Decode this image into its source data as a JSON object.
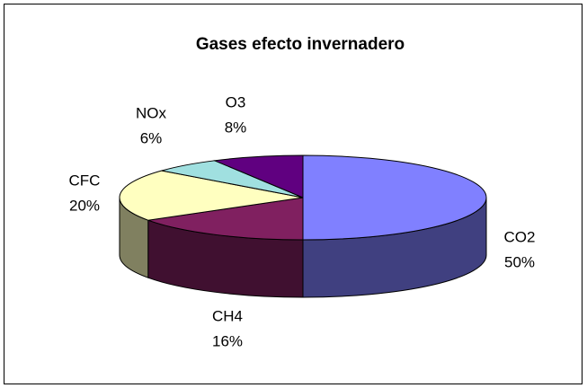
{
  "chart_data": {
    "type": "pie",
    "title": "Gases efecto invernadero",
    "categories": [
      "CO2",
      "CH4",
      "CFC",
      "NOx",
      "O3"
    ],
    "values": [
      50,
      16,
      20,
      6,
      8
    ],
    "value_labels": [
      "50%",
      "16%",
      "20%",
      "6%",
      "8%"
    ],
    "colors": [
      "#8080ff",
      "#802060",
      "#ffffc0",
      "#a0e0e0",
      "#600080"
    ]
  }
}
